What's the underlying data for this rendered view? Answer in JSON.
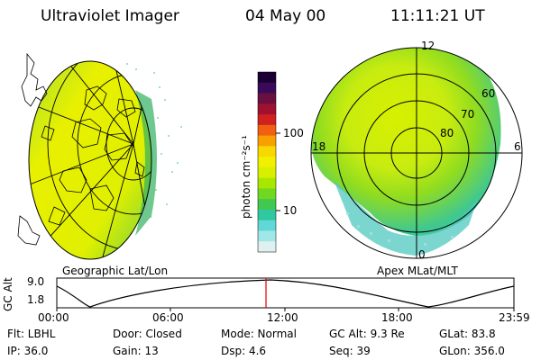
{
  "header": {
    "instrument": "Ultraviolet Imager",
    "date": "04 May 00",
    "time": "11:11:21 UT"
  },
  "colorbar": {
    "unit_label": "photon cm⁻²s⁻¹",
    "ticks": [
      "100",
      "10"
    ],
    "scale": "log",
    "colors": [
      "#1a0033",
      "#3a0a5a",
      "#6a1040",
      "#a01030",
      "#d02020",
      "#f06010",
      "#f8a000",
      "#f8d800",
      "#f0f000",
      "#d8f000",
      "#a8e800",
      "#70d820",
      "#40c850",
      "#30c8a0",
      "#60d8d8",
      "#a0e8e8",
      "#e0f0f0"
    ]
  },
  "left_panel": {
    "caption": "Geographic Lat/Lon"
  },
  "right_panel": {
    "caption": "Apex MLat/MLT",
    "mlt_labels": {
      "top": "12",
      "left": "18",
      "right": "6",
      "bottom": "0"
    },
    "mlat_labels": [
      "60",
      "70",
      "80"
    ]
  },
  "altitude_plot": {
    "ylabel": "GC Alt",
    "y_ticks": [
      "9.0",
      "1.8"
    ],
    "x_ticks": [
      "00:00",
      "06:00",
      "12:00",
      "18:00",
      "23:59"
    ],
    "current_time_color": "#e00000"
  },
  "info": {
    "flt": "Flt: LBHL",
    "door": "Door: Closed",
    "mode": "Mode: Normal",
    "gc_alt": "GC Alt: 9.3 Re",
    "glat": "GLat:  83.8",
    "ip": "IP: 36.0",
    "gain": "Gain: 13",
    "dsp": "Dsp:     4.6",
    "seq": "Seq: 39",
    "glon": "GLon: 356.0"
  }
}
